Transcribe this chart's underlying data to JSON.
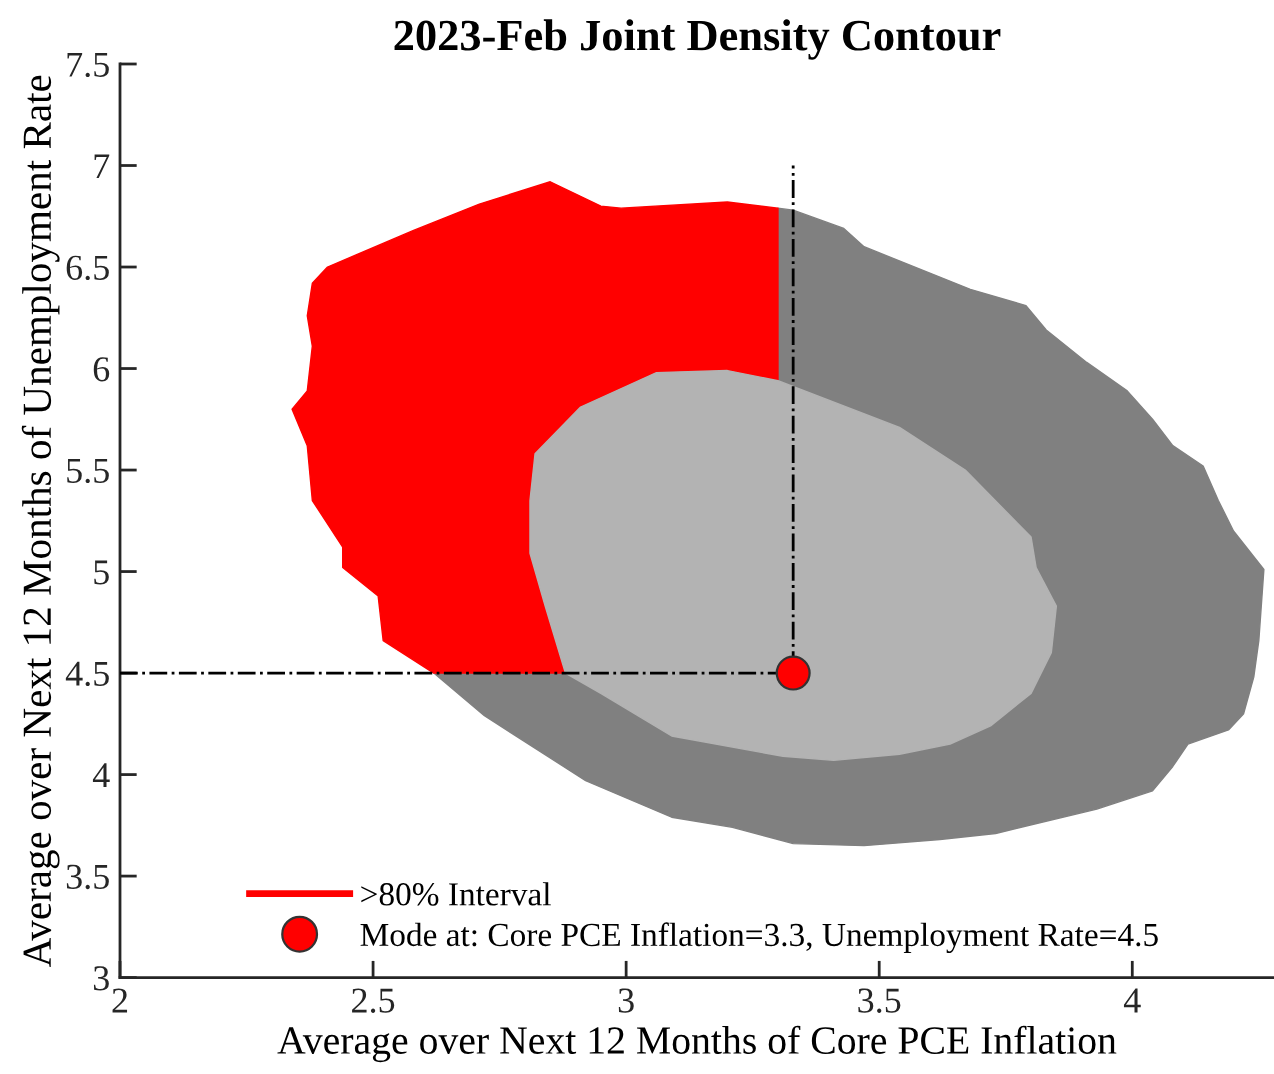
{
  "chart_data": {
    "type": "area",
    "title": "2023-Feb Joint Density Contour",
    "xlabel": "Average over Next 12 Months of Core PCE Inflation",
    "ylabel": "Average over Next 12 Months of Unemployment Rate",
    "series": [
      {
        "color": "#808080",
        "x": [
          3.3,
          3.33,
          3.43,
          3.47,
          3.68,
          3.79,
          3.83,
          3.91,
          3.99,
          4.04,
          4.08,
          4.14,
          4.17,
          4.2,
          4.26,
          4.25,
          4.24,
          4.22,
          4.19,
          4.11,
          4.08,
          4.04,
          3.93,
          3.73,
          3.62,
          3.47,
          3.33,
          3.21,
          3.09,
          2.92,
          2.72,
          2.62,
          2.88,
          2.95,
          3.09,
          3.31,
          3.41,
          3.54,
          3.64,
          3.72,
          3.8,
          3.84,
          3.85,
          3.81,
          3.8,
          3.67,
          3.54,
          3.3
        ],
        "values": [
          6.79,
          6.78,
          6.69,
          6.6,
          6.39,
          6.31,
          6.19,
          6.03,
          5.89,
          5.75,
          5.62,
          5.52,
          5.35,
          5.2,
          5.01,
          4.66,
          4.48,
          4.3,
          4.22,
          4.15,
          4.04,
          3.92,
          3.83,
          3.71,
          3.68,
          3.65,
          3.66,
          3.74,
          3.79,
          3.97,
          4.29,
          4.5,
          4.5,
          4.4,
          4.19,
          4.09,
          4.07,
          4.1,
          4.15,
          4.24,
          4.4,
          4.6,
          4.83,
          5.02,
          5.17,
          5.5,
          5.71,
          5.94
        ]
      },
      {
        "name": ">80% Interval",
        "color": "#ff0000",
        "x": [
          2.62,
          2.52,
          2.51,
          2.44,
          2.44,
          2.38,
          2.37,
          2.34,
          2.37,
          2.38,
          2.37,
          2.38,
          2.41,
          2.58,
          2.71,
          2.85,
          2.95,
          2.99,
          3.2,
          3.3,
          3.3,
          3.2,
          3.06,
          2.91,
          2.82,
          2.81,
          2.81,
          2.84,
          2.88
        ],
        "values": [
          4.5,
          4.66,
          4.88,
          5.02,
          5.12,
          5.35,
          5.62,
          5.8,
          5.89,
          6.11,
          6.26,
          6.42,
          6.5,
          6.68,
          6.81,
          6.92,
          6.8,
          6.79,
          6.82,
          6.79,
          5.94,
          5.99,
          5.98,
          5.81,
          5.58,
          5.35,
          5.09,
          4.83,
          4.5
        ]
      },
      {
        "color": "#b3b3b3",
        "x": [
          3.06,
          3.2,
          3.3,
          3.54,
          3.67,
          3.8,
          3.81,
          3.85,
          3.84,
          3.8,
          3.72,
          3.64,
          3.54,
          3.41,
          3.31,
          3.09,
          2.95,
          2.88,
          2.84,
          2.81,
          2.81,
          2.82,
          2.91
        ],
        "values": [
          5.98,
          5.99,
          5.94,
          5.71,
          5.5,
          5.17,
          5.02,
          4.83,
          4.6,
          4.4,
          4.24,
          4.15,
          4.1,
          4.07,
          4.09,
          4.19,
          4.4,
          4.5,
          4.83,
          5.09,
          5.35,
          5.58,
          5.81
        ]
      },
      {
        "type": "line",
        "color": "#000000",
        "line_style": "dashed",
        "x": [
          2,
          3.33,
          3.33
        ],
        "values": [
          4.5,
          4.5,
          7
        ]
      },
      {
        "type": "scatter",
        "name": "Mode at: Core PCE Inflation=3.3, Unemployment Rate=4.5",
        "color": "#ff0000",
        "marker": "circle",
        "x": [
          3.33
        ],
        "values": [
          4.5
        ]
      }
    ],
    "xlim": [
      2,
      4.28
    ],
    "ylim": [
      3,
      7.5
    ],
    "xticks": [
      2,
      2.5,
      3,
      3.5,
      4
    ],
    "yticks": [
      3,
      3.5,
      4,
      4.5,
      5,
      5.5,
      6,
      6.5,
      7,
      7.5
    ],
    "grid": false,
    "legend": "bottom left"
  }
}
